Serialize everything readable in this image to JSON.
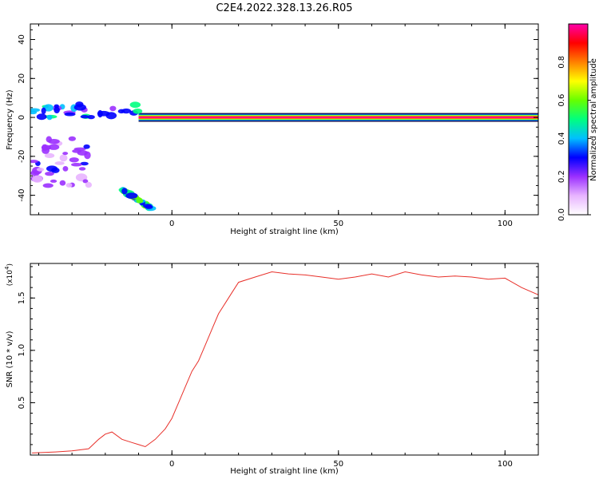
{
  "title": "C2E4.2022.328.13.26.R05",
  "chart_data": [
    {
      "type": "heatmap",
      "xlabel": "Height of straight line (km)",
      "ylabel": "Frequency (Hz)",
      "xlim": [
        -42.5,
        110
      ],
      "ylim": [
        -50,
        48
      ],
      "x_ticks": [
        0,
        50,
        100
      ],
      "y_ticks": [
        -40,
        -20,
        0,
        20,
        40
      ],
      "colorbar": {
        "label": "Normalized spectral amplitude",
        "range": [
          0,
          1
        ],
        "ticks": [
          0.0,
          0.2,
          0.4,
          0.6,
          0.8
        ],
        "colormap": [
          "#ffffff",
          "#e8b4ff",
          "#9b30ff",
          "#0000ff",
          "#00bfff",
          "#00ff7f",
          "#66ff00",
          "#ffff00",
          "#ff8000",
          "#ff0000",
          "#ff00aa"
        ]
      },
      "features": [
        {
          "desc": "main carrier band",
          "x": [
            -10,
            110
          ],
          "freq": 0,
          "amplitude": 1.0
        },
        {
          "desc": "noisy band near zero",
          "x": [
            -42,
            -10
          ],
          "freq": [
            0,
            7
          ],
          "amplitude": 0.5
        },
        {
          "desc": "descending branch",
          "x": [
            -15,
            -6
          ],
          "freq": [
            -37,
            -47
          ],
          "amplitude": 0.6
        },
        {
          "desc": "scattered low-frequency patches",
          "x": [
            -42,
            -25
          ],
          "freq": [
            -35,
            -10
          ],
          "amplitude": 0.3
        }
      ]
    },
    {
      "type": "line",
      "xlabel": "Height of straight line (km)",
      "ylabel": "SNR (10 * v/v)",
      "y_scale_label": "(x10",
      "y_scale_exp": "4",
      "xlim": [
        -42.5,
        110
      ],
      "ylim": [
        0,
        18300
      ],
      "x_ticks": [
        0,
        50,
        100
      ],
      "y_ticks": [
        0.5,
        1.0,
        1.5
      ],
      "series": [
        {
          "color": "#e8302a",
          "x": [
            -42,
            -35,
            -30,
            -25,
            -22,
            -20,
            -18,
            -15,
            -12,
            -10,
            -8,
            -5,
            -2,
            0,
            2,
            4,
            6,
            8,
            10,
            12,
            14,
            16,
            18,
            20,
            25,
            30,
            35,
            40,
            45,
            50,
            55,
            60,
            65,
            70,
            75,
            80,
            85,
            90,
            95,
            100,
            105,
            110
          ],
          "values": [
            200,
            300,
            400,
            600,
            1500,
            2000,
            2200,
            1500,
            1200,
            1000,
            800,
            1500,
            2500,
            3500,
            5000,
            6500,
            8000,
            9000,
            10500,
            12000,
            13500,
            14500,
            15500,
            16500,
            17000,
            17500,
            17300,
            17200,
            17000,
            16800,
            17000,
            17300,
            17000,
            17500,
            17200,
            17000,
            17100,
            17000,
            16800,
            16900,
            16000,
            15300
          ]
        }
      ]
    }
  ]
}
